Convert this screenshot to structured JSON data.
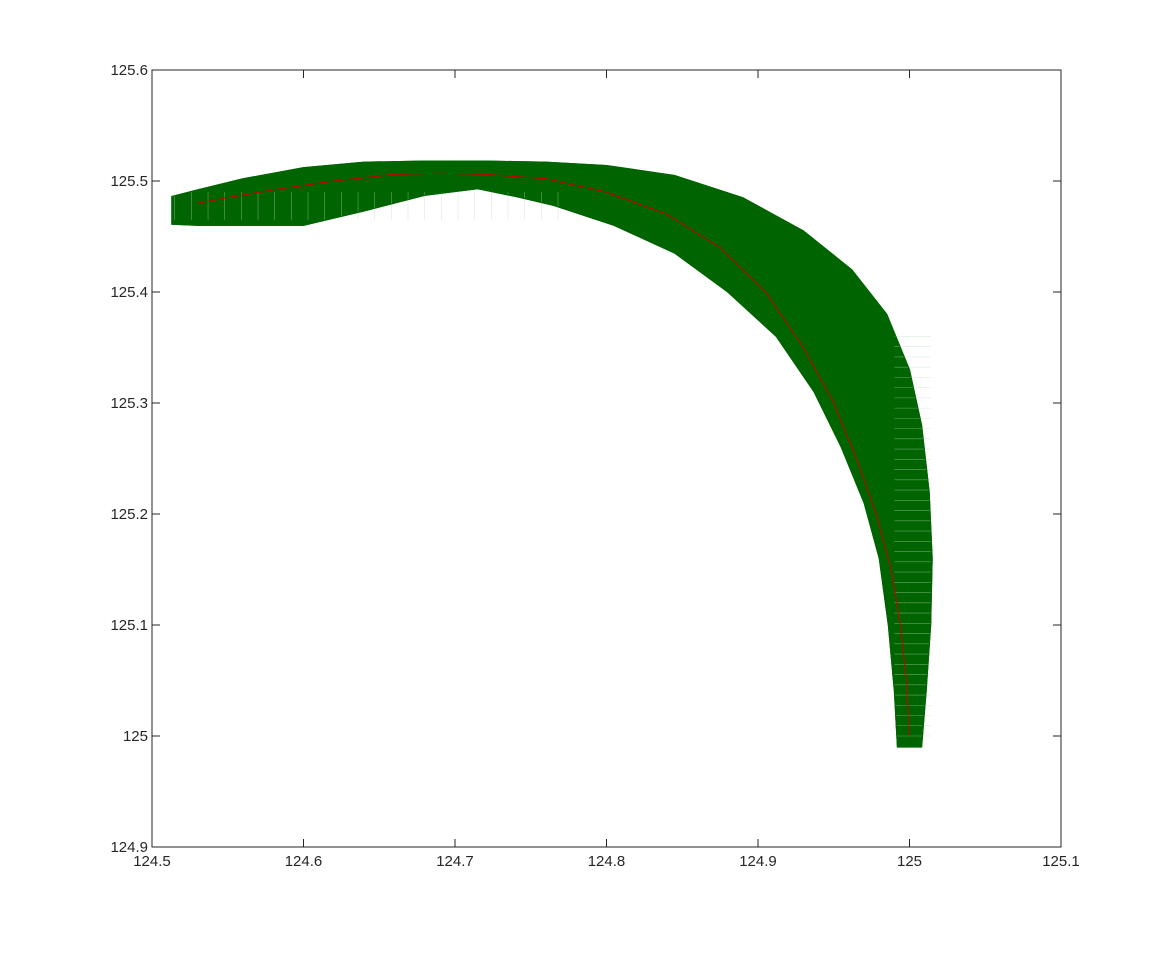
{
  "chart_data": {
    "type": "line",
    "title": "",
    "xlabel": "",
    "ylabel": "",
    "xlim": [
      124.5,
      125.1
    ],
    "ylim": [
      124.9,
      125.6
    ],
    "grid": false,
    "legend": "none",
    "x_ticks": [
      124.5,
      124.6,
      124.7,
      124.8,
      124.9,
      125.0,
      125.1
    ],
    "x_tick_labels": [
      "124.5",
      "124.6",
      "124.7",
      "124.8",
      "124.9",
      "125",
      "125.1"
    ],
    "y_ticks": [
      124.9,
      125.0,
      125.1,
      125.2,
      125.3,
      125.4,
      125.5,
      125.6
    ],
    "y_tick_labels": [
      "124.9",
      "125",
      "125.1",
      "125.2",
      "125.3",
      "125.4",
      "125.5",
      "125.6"
    ],
    "colors": {
      "band": "#006400",
      "path": "#cc0000",
      "axes": "#262626"
    },
    "series": [
      {
        "style": "path-line",
        "color": "#cc0000",
        "x": [
          125.0,
          124.998,
          124.994,
          124.988,
          124.978,
          124.965,
          124.95,
          124.93,
          124.905,
          124.875,
          124.84,
          124.8,
          124.76,
          124.72,
          124.69,
          124.66,
          124.62,
          124.58,
          124.55,
          124.53
        ],
        "y": [
          125.0,
          125.05,
          125.1,
          125.15,
          125.2,
          125.25,
          125.3,
          125.35,
          125.4,
          125.44,
          125.47,
          125.49,
          125.502,
          125.506,
          125.507,
          125.506,
          125.5,
          125.492,
          125.485,
          125.48
        ]
      },
      {
        "style": "band-outer-edge",
        "color": "#006400",
        "x": [
          125.008,
          125.011,
          125.014,
          125.015,
          125.013,
          125.008,
          125.0,
          124.985,
          124.962,
          124.93,
          124.89,
          124.845,
          124.8,
          124.76,
          124.72,
          124.68,
          124.64,
          124.6,
          124.56,
          124.53,
          124.513
        ],
        "y": [
          124.99,
          125.04,
          125.1,
          125.16,
          125.22,
          125.28,
          125.33,
          125.38,
          125.42,
          125.455,
          125.485,
          125.505,
          125.514,
          125.517,
          125.518,
          125.518,
          125.517,
          125.512,
          125.502,
          125.492,
          125.486
        ]
      },
      {
        "style": "band-inner-edge",
        "color": "#006400",
        "x": [
          124.992,
          124.99,
          124.986,
          124.98,
          124.97,
          124.955,
          124.937,
          124.912,
          124.88,
          124.845,
          124.805,
          124.765,
          124.74,
          124.715,
          124.68,
          124.64,
          124.6,
          124.56,
          124.53,
          124.513
        ],
        "y": [
          124.99,
          125.04,
          125.1,
          125.16,
          125.21,
          125.26,
          125.31,
          125.36,
          125.4,
          125.435,
          125.46,
          125.478,
          125.486,
          125.493,
          125.487,
          125.473,
          125.46,
          125.46,
          125.46,
          125.461
        ]
      }
    ]
  }
}
